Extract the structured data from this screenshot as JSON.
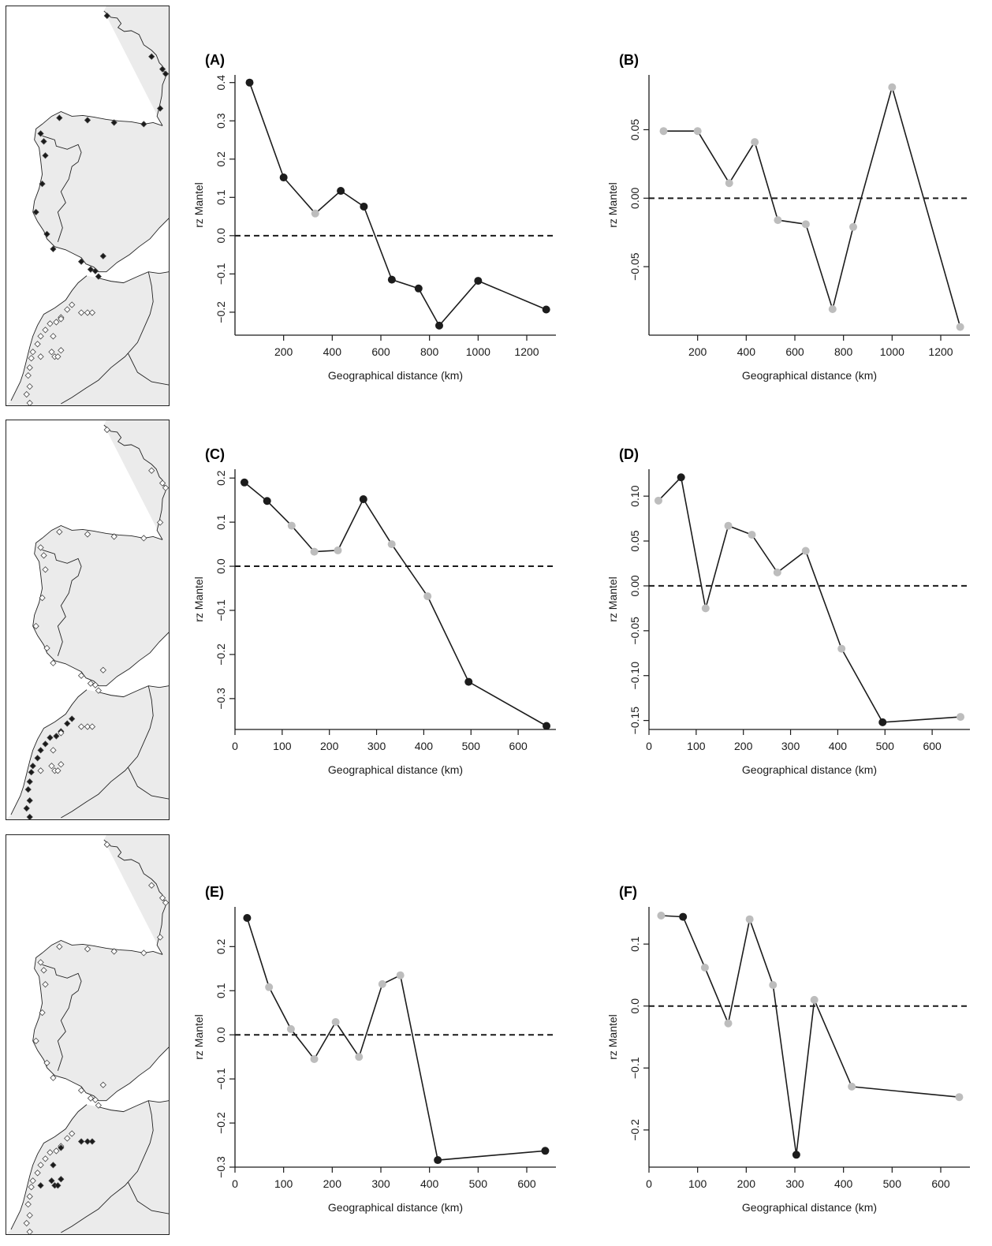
{
  "figure": {
    "maps": [
      {
        "id": "map-1",
        "northern": "filled",
        "southern": "open",
        "inland": "open"
      },
      {
        "id": "map-2",
        "northern": "open",
        "southern": "filled",
        "inland": "open"
      },
      {
        "id": "map-3",
        "northern": "open",
        "southern": "open",
        "inland": "filled"
      }
    ]
  },
  "chart_data": [
    {
      "panel": "(A)",
      "type": "line",
      "xlabel": "Geographical distance (km)",
      "ylabel": "rz Mantel",
      "xlim": [
        0,
        1320
      ],
      "ylim": [
        -0.26,
        0.42
      ],
      "xticks": [
        200,
        400,
        600,
        800,
        1000,
        1200
      ],
      "yticks": [
        -0.2,
        -0.1,
        0.0,
        0.1,
        0.2,
        0.3,
        0.4
      ],
      "ytick_labels": [
        "−0.2",
        "−0.1",
        "0.0",
        "0.1",
        "0.2",
        "0.3",
        "0.4"
      ],
      "reference_line": 0,
      "x": [
        60,
        200,
        330,
        435,
        530,
        645,
        755,
        840,
        1000,
        1280
      ],
      "y": [
        0.4,
        0.152,
        0.058,
        0.117,
        0.076,
        -0.115,
        -0.138,
        -0.235,
        -0.118,
        -0.193
      ],
      "significant": [
        true,
        true,
        false,
        true,
        true,
        true,
        true,
        true,
        true,
        true
      ]
    },
    {
      "panel": "(B)",
      "type": "line",
      "xlabel": "Geographical distance (km)",
      "ylabel": "rz Mantel",
      "xlim": [
        0,
        1320
      ],
      "ylim": [
        -0.1,
        0.09
      ],
      "xticks": [
        200,
        400,
        600,
        800,
        1000,
        1200
      ],
      "yticks": [
        -0.05,
        0.0,
        0.05
      ],
      "ytick_labels": [
        "−0.05",
        "0.00",
        "0.05"
      ],
      "reference_line": 0,
      "x": [
        60,
        200,
        330,
        435,
        530,
        645,
        755,
        840,
        1000,
        1280
      ],
      "y": [
        0.049,
        0.049,
        0.011,
        0.041,
        -0.016,
        -0.019,
        -0.081,
        -0.021,
        0.081,
        -0.094
      ],
      "significant": [
        false,
        false,
        false,
        false,
        false,
        false,
        false,
        false,
        false,
        false
      ]
    },
    {
      "panel": "(C)",
      "type": "line",
      "xlabel": "Geographical distance (km)",
      "ylabel": "rz Mantel",
      "xlim": [
        0,
        680
      ],
      "ylim": [
        -0.37,
        0.22
      ],
      "xticks": [
        0,
        100,
        200,
        300,
        400,
        500,
        600
      ],
      "yticks": [
        -0.3,
        -0.2,
        -0.1,
        0.0,
        0.1,
        0.2
      ],
      "ytick_labels": [
        "−0.3",
        "−0.2",
        "−0.1",
        "0.0",
        "0.1",
        "0.2"
      ],
      "reference_line": 0,
      "x": [
        20,
        68,
        120,
        168,
        218,
        272,
        332,
        408,
        495,
        660
      ],
      "y": [
        0.19,
        0.148,
        0.092,
        0.033,
        0.036,
        0.152,
        0.05,
        -0.068,
        -0.262,
        -0.362
      ],
      "significant": [
        true,
        true,
        false,
        false,
        false,
        true,
        false,
        false,
        true,
        true
      ]
    },
    {
      "panel": "(D)",
      "type": "line",
      "xlabel": "Geographical distance (km)",
      "ylabel": "rz Mantel",
      "xlim": [
        0,
        680
      ],
      "ylim": [
        -0.16,
        0.13
      ],
      "xticks": [
        0,
        100,
        200,
        300,
        400,
        500,
        600
      ],
      "yticks": [
        -0.15,
        -0.1,
        -0.05,
        0.0,
        0.05,
        0.1
      ],
      "ytick_labels": [
        "−0.15",
        "−0.10",
        "−0.05",
        "0.00",
        "0.05",
        "0.10"
      ],
      "reference_line": 0,
      "x": [
        20,
        68,
        120,
        168,
        218,
        272,
        332,
        408,
        495,
        660
      ],
      "y": [
        0.095,
        0.121,
        -0.025,
        0.067,
        0.057,
        0.015,
        0.039,
        -0.07,
        -0.152,
        -0.146
      ],
      "significant": [
        false,
        true,
        false,
        false,
        false,
        false,
        false,
        false,
        true,
        false
      ]
    },
    {
      "panel": "(E)",
      "type": "line",
      "xlabel": "Geographical distance (km)",
      "ylabel": "rz Mantel",
      "xlim": [
        0,
        660
      ],
      "ylim": [
        -0.3,
        0.29
      ],
      "xticks": [
        0,
        100,
        200,
        300,
        400,
        500,
        600
      ],
      "yticks": [
        -0.3,
        -0.2,
        -0.1,
        0.0,
        0.1,
        0.2
      ],
      "ytick_labels": [
        "−0.3",
        "−0.2",
        "−0.1",
        "0.0",
        "0.1",
        "0.2"
      ],
      "reference_line": 0,
      "x": [
        25,
        70,
        115,
        163,
        207,
        255,
        303,
        340,
        417,
        638
      ],
      "y": [
        0.265,
        0.108,
        0.013,
        -0.055,
        0.029,
        -0.05,
        0.115,
        0.135,
        -0.284,
        -0.263
      ],
      "significant": [
        true,
        false,
        false,
        false,
        false,
        false,
        false,
        false,
        true,
        true
      ]
    },
    {
      "panel": "(F)",
      "type": "line",
      "xlabel": "Geographical distance (km)",
      "ylabel": "rz Mantel",
      "xlim": [
        0,
        660
      ],
      "ylim": [
        -0.26,
        0.16
      ],
      "xticks": [
        0,
        100,
        200,
        300,
        400,
        500,
        600
      ],
      "yticks": [
        -0.2,
        -0.1,
        0.0,
        0.1
      ],
      "ytick_labels": [
        "−0.2",
        "−0.1",
        "0.0",
        "0.1"
      ],
      "reference_line": 0,
      "x": [
        25,
        70,
        115,
        163,
        207,
        255,
        303,
        340,
        417,
        638
      ],
      "y": [
        0.146,
        0.144,
        0.062,
        -0.028,
        0.14,
        0.034,
        -0.24,
        0.01,
        -0.13,
        -0.147
      ],
      "significant": [
        false,
        true,
        false,
        false,
        false,
        false,
        true,
        false,
        false,
        false
      ]
    }
  ],
  "colors": {
    "significant": "#1c1c1c",
    "non_significant": "#bdbdbd",
    "line": "#1c1c1c",
    "land": "#ebebeb"
  }
}
